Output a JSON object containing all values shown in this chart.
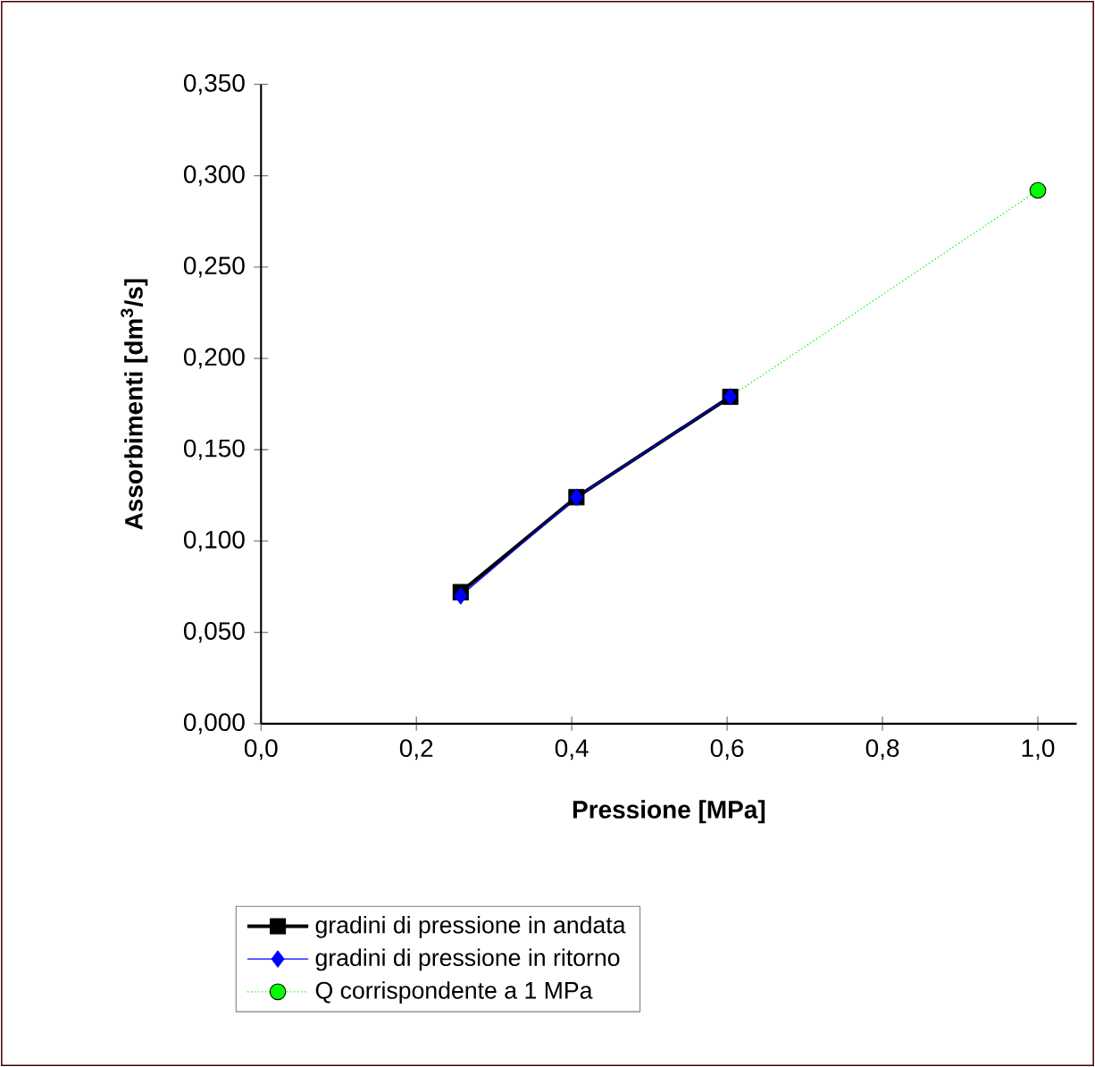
{
  "chart_data": {
    "type": "line",
    "xlabel": "Pressione [MPa]",
    "ylabel": "Assorbimenti [dm$^{3}$/s]",
    "xlim": [
      0,
      1.05
    ],
    "ylim": [
      0,
      0.35
    ],
    "xticks": [
      {
        "value": 0,
        "label": "0,0"
      },
      {
        "value": 0.2,
        "label": "0,2"
      },
      {
        "value": 0.4,
        "label": "0,4"
      },
      {
        "value": 0.6,
        "label": "0,6"
      },
      {
        "value": 0.8,
        "label": "0,8"
      },
      {
        "value": 1.0,
        "label": "1,0"
      }
    ],
    "yticks": [
      {
        "value": 0,
        "label": "0,000"
      },
      {
        "value": 0.05,
        "label": "0,050"
      },
      {
        "value": 0.1,
        "label": "0,100"
      },
      {
        "value": 0.15,
        "label": "0,150"
      },
      {
        "value": 0.2,
        "label": "0,200"
      },
      {
        "value": 0.25,
        "label": "0,250"
      },
      {
        "value": 0.3,
        "label": "0,300"
      },
      {
        "value": 0.35,
        "label": "0,350"
      }
    ],
    "grid": false,
    "legend": "bottom",
    "series": [
      {
        "name": "gradini di pressione in andata",
        "color": "#000000",
        "marker": "square",
        "line_style": "solid",
        "x": [
          0.257,
          0.406,
          0.604
        ],
        "values": [
          0.072,
          0.124,
          0.179
        ]
      },
      {
        "name": "gradini di pressione in ritorno",
        "color": "#0000ff",
        "marker": "diamond",
        "line_style": "solid",
        "x": [
          0.257,
          0.406,
          0.604
        ],
        "values": [
          0.07,
          0.124,
          0.179
        ]
      },
      {
        "name": "Q  corrispondente a 1 MPa",
        "color": "#00ff00",
        "marker": "circle",
        "line_style": "dotted",
        "x": [
          0.604,
          1.0
        ],
        "values": [
          0.179,
          0.292
        ]
      }
    ]
  }
}
